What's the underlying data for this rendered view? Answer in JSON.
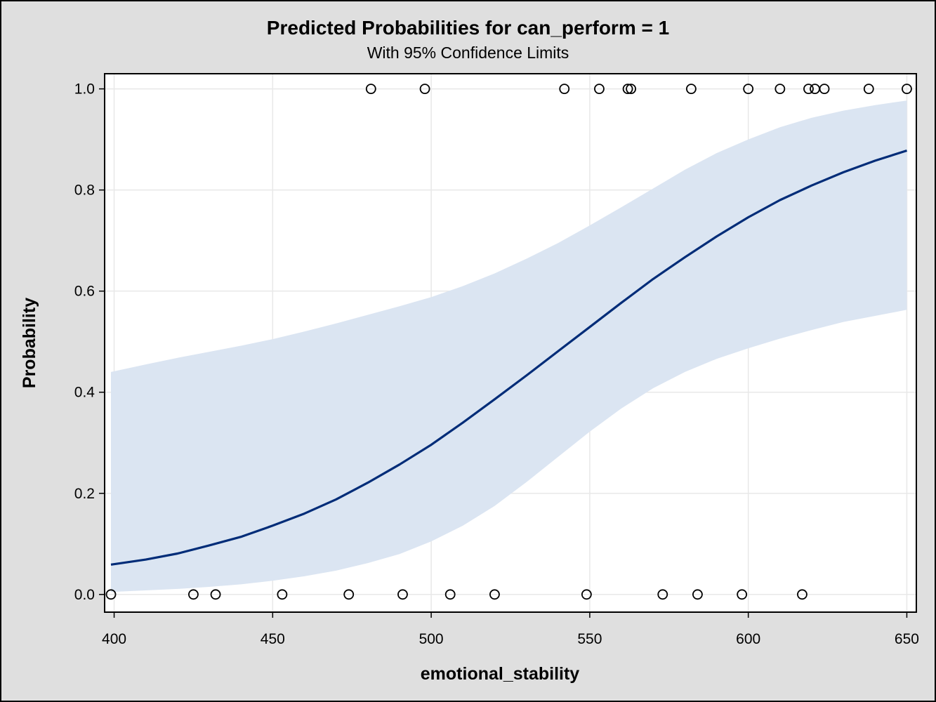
{
  "chart_data": {
    "type": "line",
    "title": "Predicted Probabilities for can_perform = 1",
    "subtitle": "With 95% Confidence Limits",
    "xlabel": "emotional_stability",
    "ylabel": "Probability",
    "xlim": [
      397,
      653
    ],
    "ylim": [
      -0.035,
      1.03
    ],
    "xticks": [
      400,
      450,
      500,
      550,
      600,
      650
    ],
    "xtick_labels": [
      "400",
      "450",
      "500",
      "550",
      "600",
      "650"
    ],
    "yticks": [
      0.0,
      0.2,
      0.4,
      0.6,
      0.8,
      1.0
    ],
    "ytick_labels": [
      "0.0",
      "0.2",
      "0.4",
      "0.6",
      "0.8",
      "1.0"
    ],
    "grid": true,
    "series": [
      {
        "type": "line",
        "x": [
          399,
          410,
          420,
          430,
          440,
          450,
          460,
          470,
          480,
          490,
          500,
          510,
          520,
          530,
          540,
          550,
          560,
          570,
          580,
          590,
          600,
          610,
          620,
          630,
          640,
          650
        ],
        "values": [
          0.059,
          0.069,
          0.081,
          0.097,
          0.114,
          0.136,
          0.16,
          0.188,
          0.221,
          0.257,
          0.296,
          0.34,
          0.386,
          0.433,
          0.481,
          0.529,
          0.577,
          0.624,
          0.667,
          0.708,
          0.746,
          0.78,
          0.809,
          0.835,
          0.858,
          0.878
        ]
      },
      {
        "type": "band",
        "x": [
          399,
          410,
          420,
          430,
          440,
          450,
          460,
          470,
          480,
          490,
          500,
          510,
          520,
          530,
          540,
          550,
          560,
          570,
          580,
          590,
          600,
          610,
          620,
          630,
          640,
          650
        ],
        "lower": [
          0.005,
          0.008,
          0.011,
          0.015,
          0.02,
          0.027,
          0.036,
          0.047,
          0.062,
          0.08,
          0.105,
          0.136,
          0.175,
          0.222,
          0.272,
          0.322,
          0.368,
          0.408,
          0.44,
          0.466,
          0.487,
          0.506,
          0.523,
          0.539,
          0.551,
          0.563
        ],
        "upper": [
          0.44,
          0.455,
          0.468,
          0.48,
          0.492,
          0.505,
          0.52,
          0.536,
          0.553,
          0.57,
          0.588,
          0.61,
          0.635,
          0.664,
          0.695,
          0.73,
          0.766,
          0.803,
          0.84,
          0.873,
          0.9,
          0.924,
          0.943,
          0.957,
          0.968,
          0.977
        ]
      },
      {
        "type": "scatter",
        "points": [
          [
            399,
            0
          ],
          [
            425,
            0
          ],
          [
            432,
            0
          ],
          [
            453,
            0
          ],
          [
            474,
            0
          ],
          [
            491,
            0
          ],
          [
            506,
            0
          ],
          [
            520,
            0
          ],
          [
            549,
            0
          ],
          [
            573,
            0
          ],
          [
            584,
            0
          ],
          [
            598,
            0
          ],
          [
            617,
            0
          ],
          [
            481,
            1
          ],
          [
            498,
            1
          ],
          [
            542,
            1
          ],
          [
            553,
            1
          ],
          [
            562,
            1
          ],
          [
            563,
            1
          ],
          [
            582,
            1
          ],
          [
            600,
            1
          ],
          [
            610,
            1
          ],
          [
            619,
            1
          ],
          [
            621,
            1
          ],
          [
            624,
            1
          ],
          [
            638,
            1
          ],
          [
            650,
            1
          ]
        ]
      }
    ],
    "colors": {
      "background": "#dfdfdf",
      "plot_background": "#ffffff",
      "grid": "#e8e8e8",
      "line": "#002c78",
      "band": "#dbe5f2",
      "marker": "#000000"
    }
  }
}
